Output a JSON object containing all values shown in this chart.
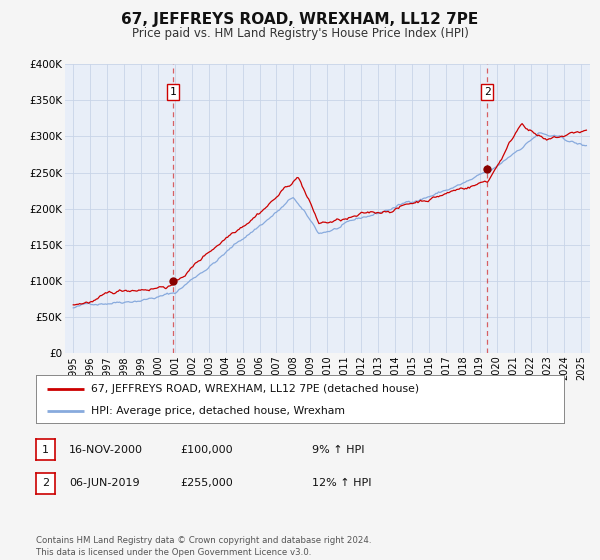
{
  "title": "67, JEFFREYS ROAD, WREXHAM, LL12 7PE",
  "subtitle": "Price paid vs. HM Land Registry's House Price Index (HPI)",
  "fig_bg_color": "#f5f5f5",
  "plot_bg_color": "#e8eef8",
  "grid_color": "#d0d8e8",
  "red_line_color": "#cc0000",
  "blue_line_color": "#88aadd",
  "marker1_date_x": 2000.88,
  "marker1_y": 100000,
  "marker2_date_x": 2019.43,
  "marker2_y": 255000,
  "vline1_x": 2000.88,
  "vline2_x": 2019.43,
  "ylim": [
    0,
    400000
  ],
  "xlim_start": 1994.5,
  "xlim_end": 2025.5,
  "ytick_values": [
    0,
    50000,
    100000,
    150000,
    200000,
    250000,
    300000,
    350000,
    400000
  ],
  "ytick_labels": [
    "£0",
    "£50K",
    "£100K",
    "£150K",
    "£200K",
    "£250K",
    "£300K",
    "£350K",
    "£400K"
  ],
  "xtick_years": [
    1995,
    1996,
    1997,
    1998,
    1999,
    2000,
    2001,
    2002,
    2003,
    2004,
    2005,
    2006,
    2007,
    2008,
    2009,
    2010,
    2011,
    2012,
    2013,
    2014,
    2015,
    2016,
    2017,
    2018,
    2019,
    2020,
    2021,
    2022,
    2023,
    2024,
    2025
  ],
  "legend_label_red": "67, JEFFREYS ROAD, WREXHAM, LL12 7PE (detached house)",
  "legend_label_blue": "HPI: Average price, detached house, Wrexham",
  "table_row1": [
    "1",
    "16-NOV-2000",
    "£100,000",
    "9% ↑ HPI"
  ],
  "table_row2": [
    "2",
    "06-JUN-2019",
    "£255,000",
    "12% ↑ HPI"
  ],
  "footnote": "Contains HM Land Registry data © Crown copyright and database right 2024.\nThis data is licensed under the Open Government Licence v3.0."
}
